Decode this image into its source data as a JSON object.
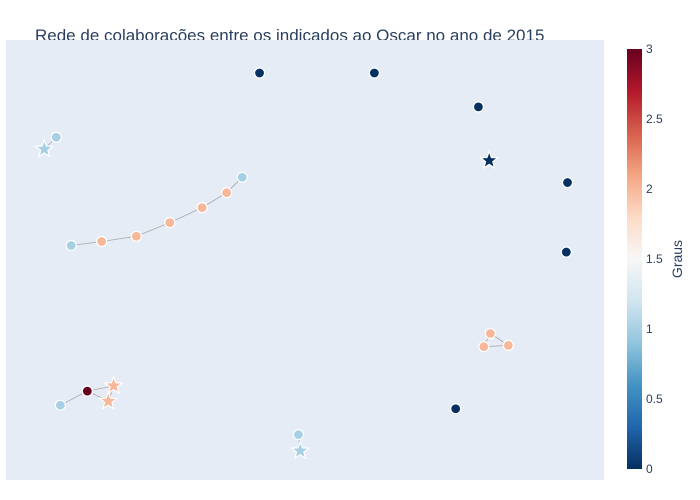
{
  "chart_data": {
    "type": "scatter",
    "title": "Rede de colaborações entre os indicados ao Oscar no ano de 2015",
    "xlabel": "",
    "ylabel": "",
    "xlim": [
      0,
      100
    ],
    "ylim": [
      0,
      100
    ],
    "grid": false,
    "colorscale": {
      "name": "RdBu (reversed)",
      "title": "Graus",
      "range": [
        0,
        3
      ],
      "ticks": [
        "0",
        "0.5",
        "1",
        "1.5",
        "2",
        "2.5",
        "3"
      ],
      "stops": [
        "#053061",
        "#2166ac",
        "#4393c3",
        "#92c5de",
        "#d1e5f0",
        "#f7f7f7",
        "#fddbc7",
        "#f4a582",
        "#d6604d",
        "#b2182b",
        "#67001f"
      ]
    },
    "nodes": [
      {
        "id": "n1",
        "x": 42.4,
        "y": 92.5,
        "degree": 0,
        "symbol": "circle"
      },
      {
        "id": "n2",
        "x": 61.6,
        "y": 92.5,
        "degree": 0,
        "symbol": "circle"
      },
      {
        "id": "n3",
        "x": 79.0,
        "y": 84.8,
        "degree": 0,
        "symbol": "circle"
      },
      {
        "id": "n4",
        "x": 80.8,
        "y": 72.6,
        "degree": 0,
        "symbol": "star"
      },
      {
        "id": "n5",
        "x": 93.9,
        "y": 67.6,
        "degree": 0,
        "symbol": "circle"
      },
      {
        "id": "n6",
        "x": 93.7,
        "y": 51.8,
        "degree": 0,
        "symbol": "circle"
      },
      {
        "id": "n7",
        "x": 75.2,
        "y": 16.2,
        "degree": 0,
        "symbol": "circle"
      },
      {
        "id": "n8",
        "x": 8.4,
        "y": 77.9,
        "degree": 1,
        "symbol": "circle"
      },
      {
        "id": "n9",
        "x": 6.4,
        "y": 75.2,
        "degree": 1,
        "symbol": "star"
      },
      {
        "id": "n10",
        "x": 39.5,
        "y": 68.8,
        "degree": 1,
        "symbol": "circle"
      },
      {
        "id": "n11",
        "x": 36.9,
        "y": 65.3,
        "degree": 2,
        "symbol": "circle"
      },
      {
        "id": "n12",
        "x": 32.8,
        "y": 61.9,
        "degree": 2,
        "symbol": "circle"
      },
      {
        "id": "n13",
        "x": 27.4,
        "y": 58.5,
        "degree": 2,
        "symbol": "circle"
      },
      {
        "id": "n14",
        "x": 21.8,
        "y": 55.4,
        "degree": 2,
        "symbol": "circle"
      },
      {
        "id": "n15",
        "x": 16.0,
        "y": 54.2,
        "degree": 2,
        "symbol": "circle"
      },
      {
        "id": "n16",
        "x": 10.9,
        "y": 53.3,
        "degree": 1,
        "symbol": "circle"
      },
      {
        "id": "n17",
        "x": 81.0,
        "y": 33.3,
        "degree": 2,
        "symbol": "circle"
      },
      {
        "id": "n18",
        "x": 84.0,
        "y": 30.6,
        "degree": 2,
        "symbol": "circle"
      },
      {
        "id": "n19",
        "x": 79.9,
        "y": 30.3,
        "degree": 2,
        "symbol": "circle"
      },
      {
        "id": "n20",
        "x": 18.0,
        "y": 21.4,
        "degree": 2,
        "symbol": "star"
      },
      {
        "id": "n21",
        "x": 13.6,
        "y": 20.2,
        "degree": 3,
        "symbol": "circle"
      },
      {
        "id": "n22",
        "x": 17.1,
        "y": 17.9,
        "degree": 2,
        "symbol": "star"
      },
      {
        "id": "n23",
        "x": 9.1,
        "y": 17.0,
        "degree": 1,
        "symbol": "circle"
      },
      {
        "id": "n24",
        "x": 48.9,
        "y": 10.3,
        "degree": 1,
        "symbol": "circle"
      },
      {
        "id": "n25",
        "x": 49.2,
        "y": 6.6,
        "degree": 1,
        "symbol": "star"
      }
    ],
    "edges": [
      [
        "n8",
        "n9"
      ],
      [
        "n10",
        "n11"
      ],
      [
        "n11",
        "n12"
      ],
      [
        "n12",
        "n13"
      ],
      [
        "n13",
        "n14"
      ],
      [
        "n14",
        "n15"
      ],
      [
        "n15",
        "n16"
      ],
      [
        "n17",
        "n18"
      ],
      [
        "n18",
        "n19"
      ],
      [
        "n19",
        "n17"
      ],
      [
        "n21",
        "n20"
      ],
      [
        "n21",
        "n22"
      ],
      [
        "n21",
        "n23"
      ],
      [
        "n20",
        "n22"
      ],
      [
        "n24",
        "n25"
      ]
    ]
  }
}
